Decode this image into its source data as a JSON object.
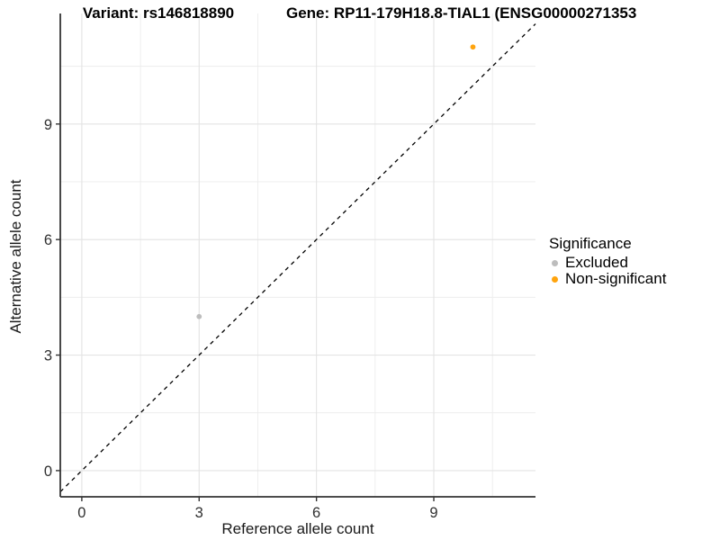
{
  "chart_data": {
    "type": "scatter",
    "title_left": "Variant: rs146818890",
    "title_right": "Gene: RP11-179H18.8-TIAL1 (ENSG00000271353",
    "xlabel": "Reference allele count",
    "ylabel": "Alternative allele count",
    "xlim": [
      -0.55,
      11.6
    ],
    "ylim": [
      -0.68,
      11.87
    ],
    "x_major_ticks": [
      0,
      3,
      6,
      9
    ],
    "y_major_ticks": [
      0,
      3,
      6,
      9
    ],
    "x_minor_ticks": [
      1.5,
      4.5,
      7.5,
      10.5
    ],
    "y_minor_ticks": [
      1.5,
      4.5,
      7.5,
      10.5
    ],
    "grid": true,
    "identity_line": {
      "type": "dashed",
      "equation": "y = x",
      "color": "#000000"
    },
    "points": [
      {
        "x": 3,
        "y": 4,
        "significance": "Excluded",
        "color": "#BDBDBD"
      },
      {
        "x": 10,
        "y": 11,
        "significance": "Non-significant",
        "color": "#FFA40E"
      }
    ],
    "legend": {
      "title": "Significance",
      "position": "right",
      "entries": [
        {
          "label": "Excluded",
          "color": "#BDBDBD"
        },
        {
          "label": "Non-significant",
          "color": "#FFA40E"
        }
      ]
    },
    "colors": {
      "background": "#FFFFFF",
      "grid_major": "#E3E3E3",
      "grid_minor": "#ECECEC",
      "axis_line": "#333333",
      "tick_label": "#303030"
    }
  }
}
